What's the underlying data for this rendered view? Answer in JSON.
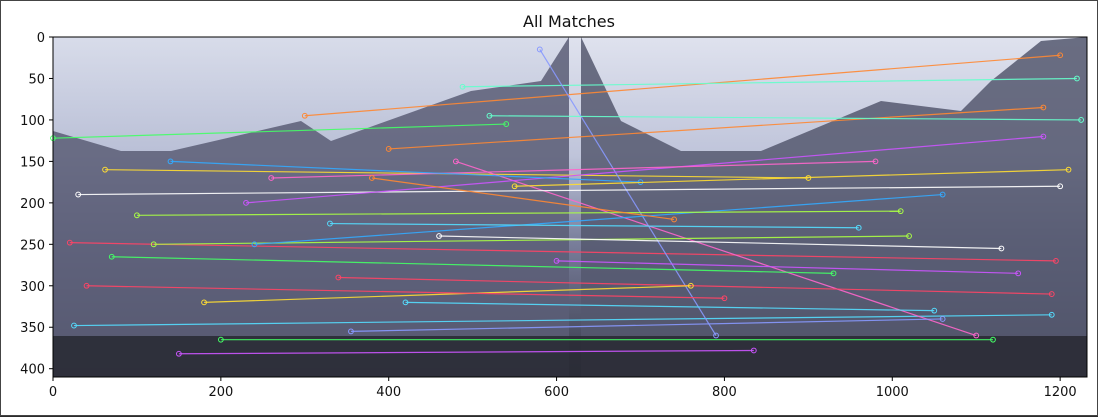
{
  "chart_data": {
    "type": "image",
    "title": "All Matches",
    "xlabel": "",
    "ylabel": "",
    "xlim": [
      0,
      1232
    ],
    "ylim": [
      410,
      0
    ],
    "xticks": [
      0,
      200,
      400,
      600,
      800,
      1000,
      1200
    ],
    "yticks": [
      0,
      50,
      100,
      150,
      200,
      250,
      300,
      350,
      400
    ],
    "image_split_x": 616,
    "grid": false,
    "content": "Two side-by-side photographs of a palace courtyard (left and right views) with hundreds of colored keypoint match lines connecting features between them.",
    "sample_matches": [
      {
        "x1": 0,
        "y1": 122,
        "x2": 540,
        "y2": 105
      },
      {
        "x1": 20,
        "y1": 248,
        "x2": 1195,
        "y2": 270
      },
      {
        "x1": 25,
        "y1": 348,
        "x2": 1190,
        "y2": 335
      },
      {
        "x1": 62,
        "y1": 160,
        "x2": 900,
        "y2": 170
      },
      {
        "x1": 150,
        "y1": 382,
        "x2": 835,
        "y2": 378
      },
      {
        "x1": 300,
        "y1": 95,
        "x2": 1200,
        "y2": 22
      },
      {
        "x1": 488,
        "y1": 60,
        "x2": 1220,
        "y2": 50
      },
      {
        "x1": 580,
        "y1": 15,
        "x2": 790,
        "y2": 360
      },
      {
        "x1": 480,
        "y1": 150,
        "x2": 1100,
        "y2": 360
      },
      {
        "x1": 120,
        "y1": 250,
        "x2": 1020,
        "y2": 240
      },
      {
        "x1": 240,
        "y1": 250,
        "x2": 1060,
        "y2": 190
      },
      {
        "x1": 30,
        "y1": 190,
        "x2": 1200,
        "y2": 180
      },
      {
        "x1": 70,
        "y1": 265,
        "x2": 930,
        "y2": 285
      },
      {
        "x1": 340,
        "y1": 290,
        "x2": 1190,
        "y2": 310
      },
      {
        "x1": 420,
        "y1": 320,
        "x2": 1050,
        "y2": 330
      },
      {
        "x1": 180,
        "y1": 320,
        "x2": 760,
        "y2": 300
      },
      {
        "x1": 230,
        "y1": 200,
        "x2": 1180,
        "y2": 120
      },
      {
        "x1": 400,
        "y1": 135,
        "x2": 1180,
        "y2": 85
      },
      {
        "x1": 520,
        "y1": 95,
        "x2": 1225,
        "y2": 100
      },
      {
        "x1": 355,
        "y1": 355,
        "x2": 1060,
        "y2": 340
      },
      {
        "x1": 260,
        "y1": 170,
        "x2": 980,
        "y2": 150
      },
      {
        "x1": 100,
        "y1": 215,
        "x2": 1010,
        "y2": 210
      },
      {
        "x1": 140,
        "y1": 150,
        "x2": 700,
        "y2": 175
      },
      {
        "x1": 460,
        "y1": 240,
        "x2": 1130,
        "y2": 255
      },
      {
        "x1": 200,
        "y1": 365,
        "x2": 1120,
        "y2": 365
      },
      {
        "x1": 40,
        "y1": 300,
        "x2": 800,
        "y2": 315
      },
      {
        "x1": 330,
        "y1": 225,
        "x2": 960,
        "y2": 230
      },
      {
        "x1": 550,
        "y1": 180,
        "x2": 1210,
        "y2": 160
      },
      {
        "x1": 600,
        "y1": 270,
        "x2": 1150,
        "y2": 285
      },
      {
        "x1": 380,
        "y1": 170,
        "x2": 740,
        "y2": 220
      }
    ]
  }
}
